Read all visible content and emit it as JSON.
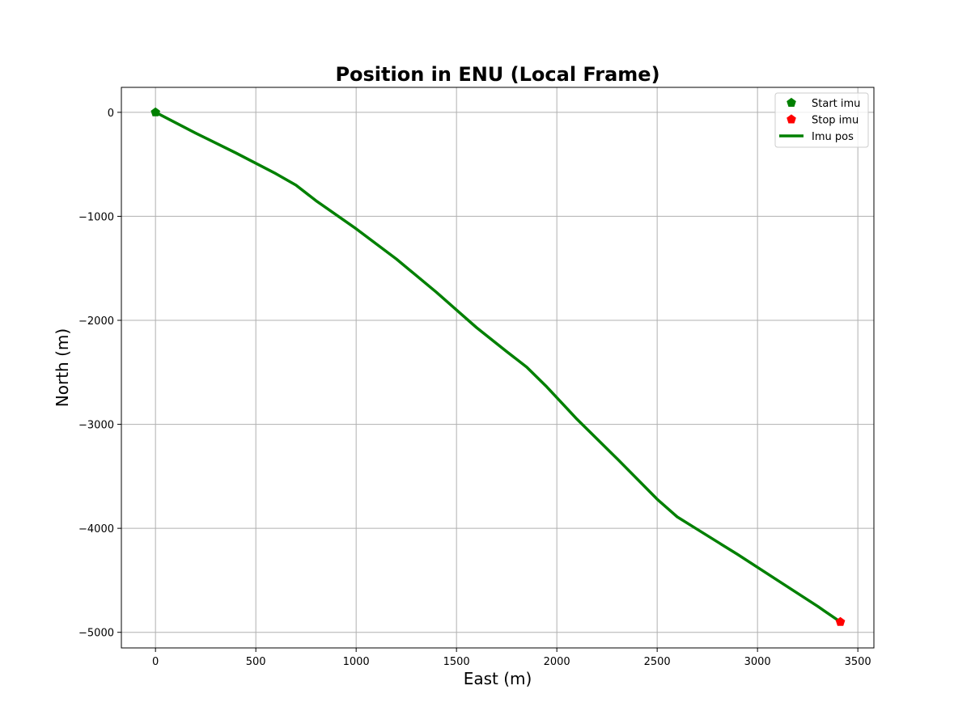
{
  "chart_data": {
    "type": "line",
    "title": "Position in ENU (Local Frame)",
    "xlabel": "East (m)",
    "ylabel": "North (m)",
    "xlim": [
      -170,
      3580
    ],
    "ylim": [
      -5150,
      240
    ],
    "xticks": [
      0,
      500,
      1000,
      1500,
      2000,
      2500,
      3000,
      3500
    ],
    "yticks": [
      0,
      -1000,
      -2000,
      -3000,
      -4000,
      -5000
    ],
    "xtick_labels": [
      "0",
      "500",
      "1000",
      "1500",
      "2000",
      "2500",
      "3000",
      "3500"
    ],
    "ytick_labels": [
      "0",
      "−1000",
      "−2000",
      "−3000",
      "−4000",
      "−5000"
    ],
    "grid": true,
    "legend_position": "top-right",
    "series": [
      {
        "name": "Imu pos",
        "color": "#008000",
        "style": "line",
        "x": [
          0,
          200,
          400,
          600,
          700,
          800,
          1000,
          1200,
          1400,
          1500,
          1600,
          1750,
          1850,
          1950,
          2100,
          2300,
          2500,
          2600,
          2700,
          2900,
          3100,
          3300,
          3413
        ],
        "y": [
          0,
          -200,
          -390,
          -590,
          -700,
          -850,
          -1120,
          -1410,
          -1730,
          -1900,
          -2070,
          -2300,
          -2450,
          -2640,
          -2950,
          -3330,
          -3720,
          -3890,
          -4010,
          -4250,
          -4500,
          -4750,
          -4900
        ]
      },
      {
        "name": "Start imu",
        "color": "#008000",
        "style": "marker",
        "marker": "pentagon",
        "x": [
          0
        ],
        "y": [
          0
        ]
      },
      {
        "name": "Stop imu",
        "color": "#ff0000",
        "style": "marker",
        "marker": "pentagon",
        "x": [
          3413
        ],
        "y": [
          -4900
        ]
      }
    ],
    "legend": [
      "Start imu",
      "Stop imu",
      "Imu pos"
    ]
  }
}
